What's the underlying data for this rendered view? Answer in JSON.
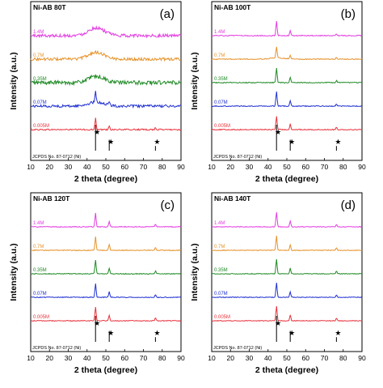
{
  "chart_data": [
    {
      "type": "line",
      "panel_label": "(a)",
      "sample": "Ni-AB 80T",
      "xlabel": "2 theta (degree)",
      "ylabel": "Intensity (a.u.)",
      "xlim": [
        10,
        90
      ],
      "xticks": [
        10,
        20,
        30,
        40,
        50,
        60,
        70,
        80,
        90
      ],
      "reference": {
        "label": "JCPDS No. 87-0712 (Ni)",
        "peaks": [
          44.5,
          51.8,
          76.4
        ],
        "relative_intensity": [
          1.0,
          0.42,
          0.18
        ]
      },
      "series": [
        {
          "name": "0.005M",
          "color": "#e8323c",
          "peaks": [
            [
              44.5,
              1.0
            ],
            [
              51.8,
              0.35
            ],
            [
              76.4,
              0.15
            ]
          ],
          "broad_hump": [
            [
              44.5,
              0.0
            ]
          ],
          "noise": 0.12
        },
        {
          "name": "0.07M",
          "color": "#1f2fd1",
          "peaks": [
            [
              44.5,
              0.9
            ],
            [
              51.8,
              0.25
            ],
            [
              76.4,
              0.1
            ]
          ],
          "broad_hump": [
            [
              45.0,
              0.35
            ]
          ],
          "noise": 0.22
        },
        {
          "name": "0.35M",
          "color": "#1e8a24",
          "peaks": [],
          "broad_hump": [
            [
              45.0,
              0.55
            ]
          ],
          "noise": 0.35
        },
        {
          "name": "0.7M",
          "color": "#e6922a",
          "peaks": [],
          "broad_hump": [
            [
              45.0,
              0.6
            ]
          ],
          "noise": 0.25
        },
        {
          "name": "1.4M",
          "color": "#e23ce0",
          "peaks": [],
          "broad_hump": [
            [
              45.0,
              0.7
            ]
          ],
          "noise": 0.28
        }
      ]
    },
    {
      "type": "line",
      "panel_label": "(b)",
      "sample": "Ni-AB 100T",
      "xlabel": "2 theta (degree)",
      "ylabel": "Intensity (a.u.)",
      "xlim": [
        10,
        90
      ],
      "xticks": [
        10,
        20,
        30,
        40,
        50,
        60,
        70,
        80,
        90
      ],
      "reference": {
        "label": "JCPDS No. 87-0712 (Ni)",
        "peaks": [
          44.5,
          51.8,
          76.4
        ],
        "relative_intensity": [
          1.0,
          0.42,
          0.18
        ]
      },
      "series": [
        {
          "name": "0.005M",
          "color": "#e8323c",
          "peaks": [
            [
              44.5,
              1.2
            ],
            [
              51.8,
              0.5
            ],
            [
              76.4,
              0.2
            ]
          ],
          "broad_hump": [],
          "noise": 0.08
        },
        {
          "name": "0.07M",
          "color": "#1f2fd1",
          "peaks": [
            [
              44.5,
              1.3
            ],
            [
              51.8,
              0.5
            ],
            [
              76.4,
              0.2
            ]
          ],
          "broad_hump": [],
          "noise": 0.08
        },
        {
          "name": "0.35M",
          "color": "#1e8a24",
          "peaks": [
            [
              44.5,
              1.3
            ],
            [
              51.8,
              0.45
            ],
            [
              76.4,
              0.18
            ]
          ],
          "broad_hump": [],
          "noise": 0.08
        },
        {
          "name": "0.7M",
          "color": "#e6922a",
          "peaks": [
            [
              44.5,
              1.0
            ],
            [
              51.8,
              0.35
            ],
            [
              76.4,
              0.15
            ]
          ],
          "broad_hump": [
            [
              45.0,
              0.1
            ]
          ],
          "noise": 0.08
        },
        {
          "name": "1.4M",
          "color": "#e23ce0",
          "peaks": [
            [
              44.5,
              1.3
            ],
            [
              51.8,
              0.45
            ],
            [
              76.4,
              0.18
            ]
          ],
          "broad_hump": [],
          "noise": 0.08
        }
      ]
    },
    {
      "type": "line",
      "panel_label": "(c)",
      "sample": "Ni-AB 120T",
      "xlabel": "2 theta (degree)",
      "ylabel": "Intensity (a.u.)",
      "xlim": [
        10,
        90
      ],
      "xticks": [
        10,
        20,
        30,
        40,
        50,
        60,
        70,
        80,
        90
      ],
      "reference": {
        "label": "JCPDS No. 87-0712 (Ni)",
        "peaks": [
          44.5,
          51.8,
          76.4
        ],
        "relative_intensity": [
          1.0,
          0.42,
          0.18
        ]
      },
      "series": [
        {
          "name": "0.005M",
          "color": "#e8323c",
          "peaks": [
            [
              44.5,
              1.2
            ],
            [
              51.8,
              0.5
            ],
            [
              76.4,
              0.25
            ]
          ],
          "broad_hump": [],
          "noise": 0.07
        },
        {
          "name": "0.07M",
          "color": "#1f2fd1",
          "peaks": [
            [
              44.5,
              1.2
            ],
            [
              51.8,
              0.5
            ],
            [
              76.4,
              0.25
            ]
          ],
          "broad_hump": [],
          "noise": 0.07
        },
        {
          "name": "0.35M",
          "color": "#1e8a24",
          "peaks": [
            [
              44.5,
              1.2
            ],
            [
              51.8,
              0.5
            ],
            [
              76.4,
              0.25
            ]
          ],
          "broad_hump": [],
          "noise": 0.07
        },
        {
          "name": "0.7M",
          "color": "#e6922a",
          "peaks": [
            [
              44.5,
              1.2
            ],
            [
              51.8,
              0.5
            ],
            [
              76.4,
              0.25
            ]
          ],
          "broad_hump": [],
          "noise": 0.07
        },
        {
          "name": "1.4M",
          "color": "#e23ce0",
          "peaks": [
            [
              44.5,
              1.2
            ],
            [
              51.8,
              0.5
            ],
            [
              76.4,
              0.25
            ]
          ],
          "broad_hump": [],
          "noise": 0.07
        }
      ]
    },
    {
      "type": "line",
      "panel_label": "(d)",
      "sample": "Ni-AB 140T",
      "xlabel": "2 theta (degree)",
      "ylabel": "Intensity (a.u.)",
      "xlim": [
        10,
        90
      ],
      "xticks": [
        10,
        20,
        30,
        40,
        50,
        60,
        70,
        80,
        90
      ],
      "reference": {
        "label": "JCPDS No. 87-0712 (Ni)",
        "peaks": [
          44.5,
          51.8,
          76.4
        ],
        "relative_intensity": [
          1.0,
          0.42,
          0.18
        ]
      },
      "series": [
        {
          "name": "0.005M",
          "color": "#e8323c",
          "peaks": [
            [
              44.5,
              1.3
            ],
            [
              51.8,
              0.5
            ],
            [
              76.4,
              0.22
            ]
          ],
          "broad_hump": [],
          "noise": 0.06
        },
        {
          "name": "0.07M",
          "color": "#1f2fd1",
          "peaks": [
            [
              44.5,
              1.3
            ],
            [
              51.8,
              0.5
            ],
            [
              76.4,
              0.22
            ]
          ],
          "broad_hump": [],
          "noise": 0.06
        },
        {
          "name": "0.35M",
          "color": "#1e8a24",
          "peaks": [
            [
              44.5,
              1.3
            ],
            [
              51.8,
              0.5
            ],
            [
              76.4,
              0.22
            ]
          ],
          "broad_hump": [],
          "noise": 0.06
        },
        {
          "name": "0.7M",
          "color": "#e6922a",
          "peaks": [
            [
              44.5,
              1.3
            ],
            [
              51.8,
              0.5
            ],
            [
              76.4,
              0.22
            ]
          ],
          "broad_hump": [],
          "noise": 0.06
        },
        {
          "name": "1.4M",
          "color": "#e23ce0",
          "peaks": [
            [
              44.5,
              1.3
            ],
            [
              51.8,
              0.5
            ],
            [
              76.4,
              0.22
            ]
          ],
          "broad_hump": [],
          "noise": 0.06
        }
      ]
    }
  ]
}
